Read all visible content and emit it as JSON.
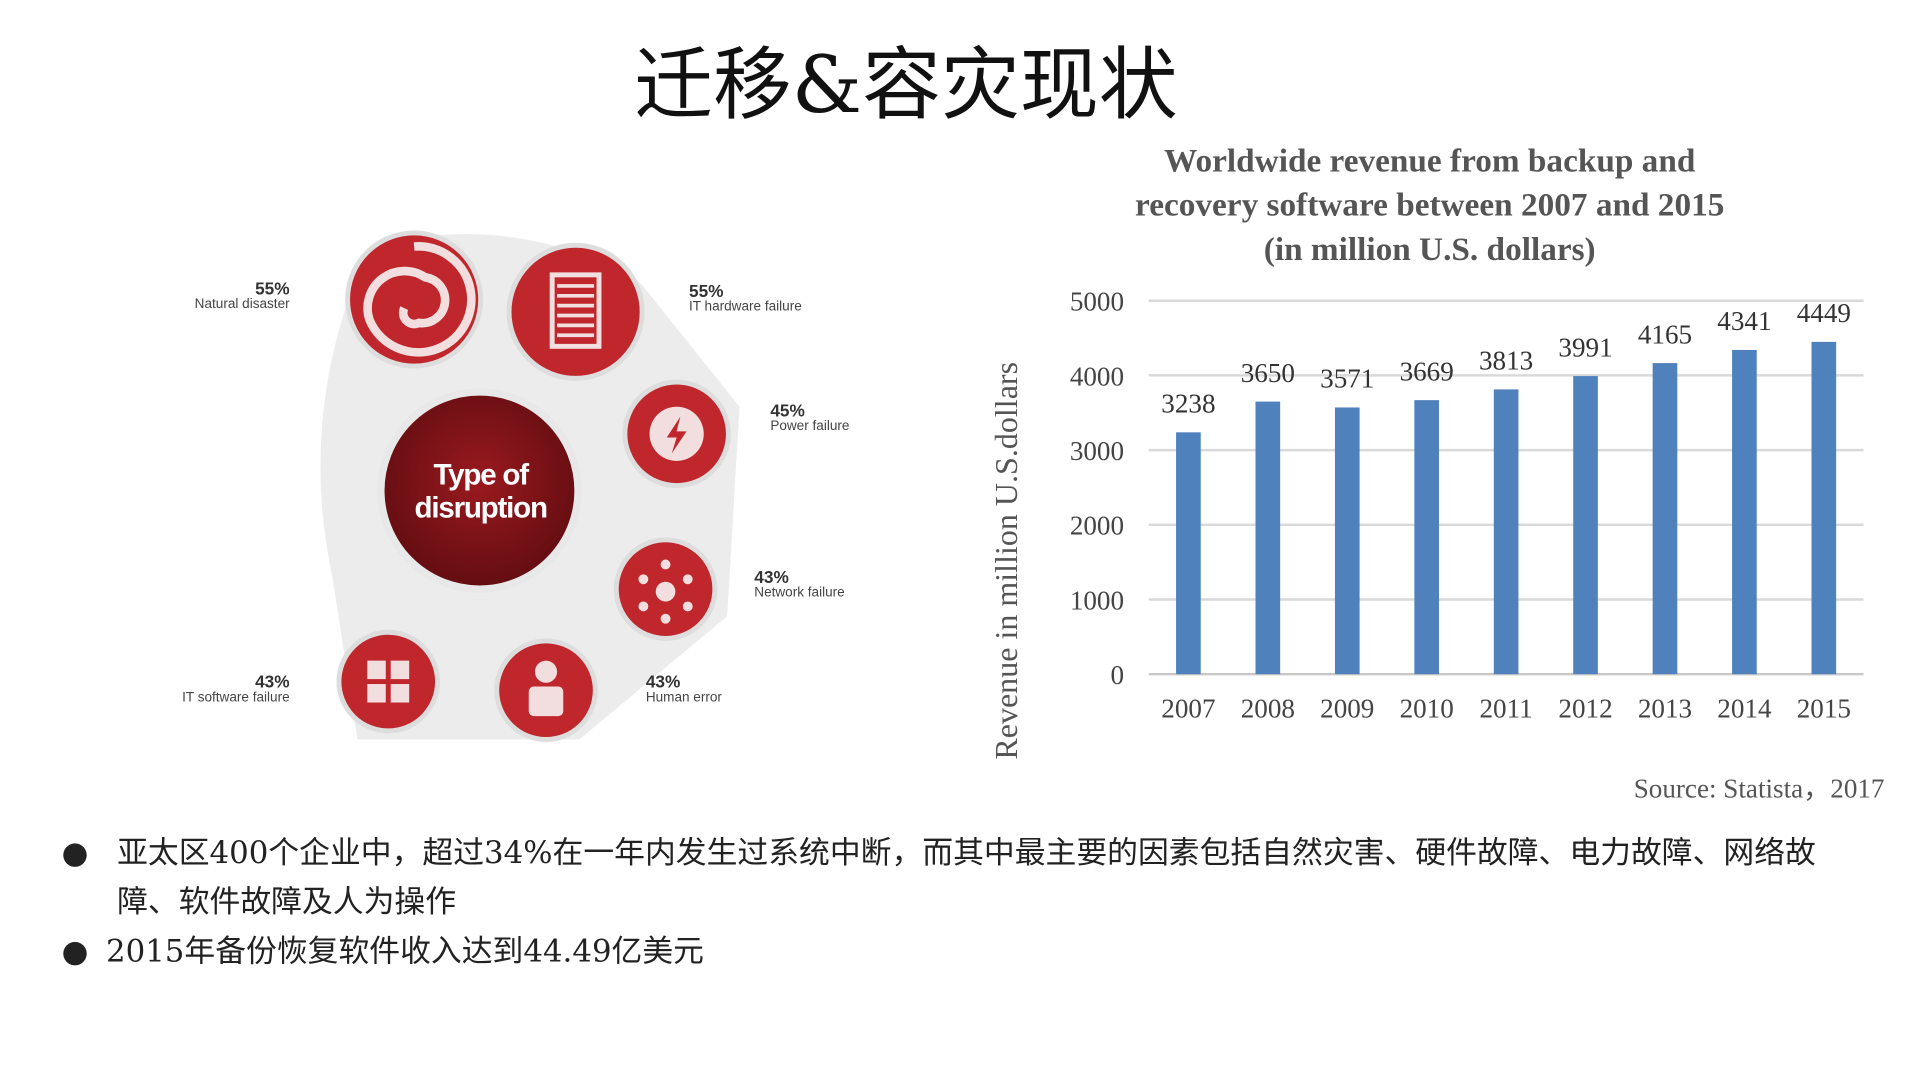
{
  "title": "迁移&容灾现状",
  "infographic": {
    "center_label_line1": "Type of",
    "center_label_line2": "disruption",
    "items": [
      {
        "percent": "55%",
        "label": "Natural disaster",
        "icon": "spiral-icon"
      },
      {
        "percent": "55%",
        "label": "IT hardware failure",
        "icon": "server-icon"
      },
      {
        "percent": "45%",
        "label": "Power failure",
        "icon": "lightning-icon"
      },
      {
        "percent": "43%",
        "label": "Network failure",
        "icon": "network-icon"
      },
      {
        "percent": "43%",
        "label": "IT software failure",
        "icon": "windows-icon"
      },
      {
        "percent": "43%",
        "label": "Human error",
        "icon": "person-icon"
      }
    ],
    "colors": {
      "red": "#c0272d",
      "dark_red": "#7a1015"
    }
  },
  "chart_data": {
    "type": "bar",
    "title_lines": [
      "Worldwide revenue from backup and",
      "recovery software between 2007 and 2015",
      "(in million U.S. dollars)"
    ],
    "categories": [
      "2007",
      "2008",
      "2009",
      "2010",
      "2011",
      "2012",
      "2013",
      "2014",
      "2015"
    ],
    "values": [
      3238,
      3650,
      3571,
      3669,
      3813,
      3991,
      4165,
      4341,
      4449
    ],
    "ylabel": "Revenue in million U.S.dollars",
    "xlabel": "",
    "ylim": [
      0,
      5000
    ],
    "yticks": [
      0,
      1000,
      2000,
      3000,
      4000,
      5000
    ],
    "grid": true,
    "bar_color": "#4f81bd",
    "source": "Source: Statista，2017"
  },
  "bullets": [
    "亚太区400个企业中，超过34%在一年内发生过系统中断，而其中最主要的因素包括自然灾害、硬件故障、电力故障、网络故障、软件故障及人为操作",
    "2015年备份恢复软件收入达到44.49亿美元"
  ],
  "bullet_symbol": "●"
}
